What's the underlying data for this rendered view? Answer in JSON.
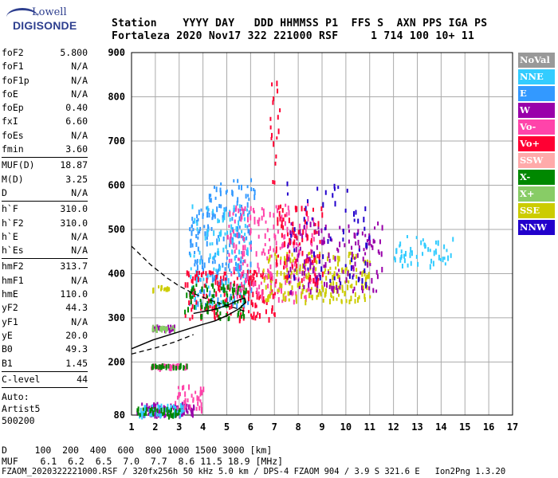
{
  "logo": {
    "line1": "Lowell",
    "line2": "DIGISONDE"
  },
  "header": {
    "line1": "Station    YYYY DAY   DDD HHMMSS P1  FFS S  AXN PPS IGA PS",
    "line2": "Fortaleza 2020 Nov17 322 221000 RSF     1 714 100 10+ 11"
  },
  "params": {
    "group1": [
      {
        "k": "foF2",
        "v": "5.800"
      },
      {
        "k": "foF1",
        "v": "N/A"
      },
      {
        "k": "foF1p",
        "v": "N/A"
      },
      {
        "k": "foE",
        "v": "N/A"
      },
      {
        "k": "foEp",
        "v": "0.40"
      },
      {
        "k": "fxI",
        "v": "6.60"
      },
      {
        "k": "foEs",
        "v": "N/A"
      },
      {
        "k": "fmin",
        "v": "3.60"
      }
    ],
    "group2": [
      {
        "k": "MUF(D)",
        "v": "18.87"
      },
      {
        "k": "M(D)",
        "v": "3.25"
      },
      {
        "k": "D",
        "v": "N/A"
      }
    ],
    "group3": [
      {
        "k": "h`F",
        "v": "310.0"
      },
      {
        "k": "h`F2",
        "v": "310.0"
      },
      {
        "k": "h`E",
        "v": "N/A"
      },
      {
        "k": "h`Es",
        "v": "N/A"
      }
    ],
    "group4": [
      {
        "k": "hmF2",
        "v": "313.7"
      },
      {
        "k": "hmF1",
        "v": "N/A"
      },
      {
        "k": "hmE",
        "v": "110.0"
      },
      {
        "k": "yF2",
        "v": "44.3"
      },
      {
        "k": "yF1",
        "v": "N/A"
      },
      {
        "k": "yE",
        "v": "20.0"
      },
      {
        "k": "B0",
        "v": "49.3"
      },
      {
        "k": "B1",
        "v": "1.45"
      }
    ],
    "group5": [
      {
        "k": "C-level",
        "v": "44"
      }
    ],
    "auto": [
      "Auto:",
      "Artist5",
      "500200"
    ]
  },
  "legend": [
    {
      "label": "NoVal",
      "color": "#999999"
    },
    {
      "label": "NNE",
      "color": "#33ccff"
    },
    {
      "label": "E",
      "color": "#3399ff"
    },
    {
      "label": "W",
      "color": "#9900aa"
    },
    {
      "label": "Vo-",
      "color": "#ff44aa"
    },
    {
      "label": "Vo+",
      "color": "#ff0033"
    },
    {
      "label": "SSW",
      "color": "#ffaaaa"
    },
    {
      "label": "X-",
      "color": "#008800"
    },
    {
      "label": "X+",
      "color": "#88cc66"
    },
    {
      "label": "SSE",
      "color": "#cccc00"
    },
    {
      "label": "NNW",
      "color": "#2200cc"
    }
  ],
  "footer": {
    "line1": "D     100  200  400  600  800 1000 1500 3000 [km]",
    "line2": "MUF    6.1  6.2  6.5  7.0  7.7  8.6 11.5 18.9 [MHz]",
    "line3": "FZAOM_2020322221000.RSF / 320fx256h 50 kHz 5.0 km / DPS-4 FZAOM 904 / 3.9 S 321.6 E   Ion2Png 1.3.20"
  },
  "chart_data": {
    "type": "scatter",
    "xlim": [
      1,
      17
    ],
    "ylim": [
      80,
      900
    ],
    "xticks": [
      1,
      2,
      3,
      4,
      5,
      6,
      7,
      8,
      9,
      10,
      11,
      12,
      13,
      14,
      15,
      16,
      17
    ],
    "yticks": [
      80,
      200,
      300,
      400,
      500,
      600,
      700,
      800,
      900
    ],
    "grid": true,
    "clusters": [
      {
        "color": "#9900aa",
        "x": [
          1.2,
          3.6
        ],
        "y": [
          82,
          110
        ],
        "n": 90
      },
      {
        "color": "#33ccff",
        "x": [
          1.3,
          3.2
        ],
        "y": [
          82,
          108
        ],
        "n": 60
      },
      {
        "color": "#008800",
        "x": [
          1.2,
          3.0
        ],
        "y": [
          82,
          100
        ],
        "n": 40
      },
      {
        "color": "#ff44aa",
        "x": [
          2.8,
          4.0
        ],
        "y": [
          95,
          150
        ],
        "n": 35
      },
      {
        "color": "#ff44aa",
        "x": [
          1.8,
          3.4
        ],
        "y": [
          190,
          198
        ],
        "n": 40
      },
      {
        "color": "#008800",
        "x": [
          1.8,
          3.4
        ],
        "y": [
          190,
          198
        ],
        "n": 25
      },
      {
        "color": "#9900aa",
        "x": [
          1.8,
          2.8
        ],
        "y": [
          275,
          285
        ],
        "n": 25
      },
      {
        "color": "#88cc66",
        "x": [
          1.8,
          2.8
        ],
        "y": [
          275,
          285
        ],
        "n": 20
      },
      {
        "color": "#cccc00",
        "x": [
          1.8,
          2.6
        ],
        "y": [
          365,
          375
        ],
        "n": 15
      },
      {
        "color": "#3399ff",
        "x": [
          3.4,
          6.0
        ],
        "y": [
          330,
          560
        ],
        "n": 200
      },
      {
        "color": "#33ccff",
        "x": [
          3.4,
          6.0
        ],
        "y": [
          330,
          560
        ],
        "n": 120
      },
      {
        "color": "#ff0033",
        "x": [
          3.2,
          7.0
        ],
        "y": [
          300,
          410
        ],
        "n": 160
      },
      {
        "color": "#008800",
        "x": [
          3.2,
          5.8
        ],
        "y": [
          300,
          380
        ],
        "n": 90
      },
      {
        "color": "#ff44aa",
        "x": [
          5.0,
          8.8
        ],
        "y": [
          340,
          560
        ],
        "n": 220
      },
      {
        "color": "#cccc00",
        "x": [
          6.5,
          11.0
        ],
        "y": [
          340,
          450
        ],
        "n": 200
      },
      {
        "color": "#9900aa",
        "x": [
          7.5,
          11.5
        ],
        "y": [
          360,
          520
        ],
        "n": 160
      },
      {
        "color": "#2200cc",
        "x": [
          7.5,
          11.0
        ],
        "y": [
          380,
          620
        ],
        "n": 60
      },
      {
        "color": "#ff0033",
        "x": [
          7.0,
          9.0
        ],
        "y": [
          380,
          560
        ],
        "n": 80
      },
      {
        "color": "#33ccff",
        "x": [
          12.0,
          14.5
        ],
        "y": [
          420,
          490
        ],
        "n": 50
      },
      {
        "color": "#ff0033",
        "x": [
          6.8,
          7.2
        ],
        "y": [
          600,
          860
        ],
        "n": 18
      },
      {
        "color": "#3399ff",
        "x": [
          4.2,
          6.2
        ],
        "y": [
          560,
          620
        ],
        "n": 30
      }
    ],
    "trace_solid": [
      [
        3.6,
        310
      ],
      [
        4.4,
        318
      ],
      [
        5.0,
        328
      ],
      [
        5.5,
        340
      ],
      [
        5.75,
        345
      ],
      [
        5.8,
        335
      ],
      [
        5.5,
        320
      ],
      [
        5.0,
        305
      ],
      [
        4.5,
        293
      ],
      [
        3.8,
        282
      ],
      [
        2.8,
        265
      ],
      [
        1.9,
        250
      ],
      [
        1.0,
        230
      ]
    ],
    "trace_dashed_upper": [
      [
        1.0,
        462
      ],
      [
        1.8,
        420
      ],
      [
        2.5,
        390
      ],
      [
        3.0,
        372
      ],
      [
        3.6,
        355
      ],
      [
        4.5,
        336
      ],
      [
        5.2,
        325
      ],
      [
        5.75,
        315
      ]
    ],
    "trace_dashed_lower": [
      [
        1.0,
        218
      ],
      [
        2.0,
        232
      ],
      [
        2.8,
        245
      ],
      [
        3.6,
        262
      ]
    ]
  }
}
